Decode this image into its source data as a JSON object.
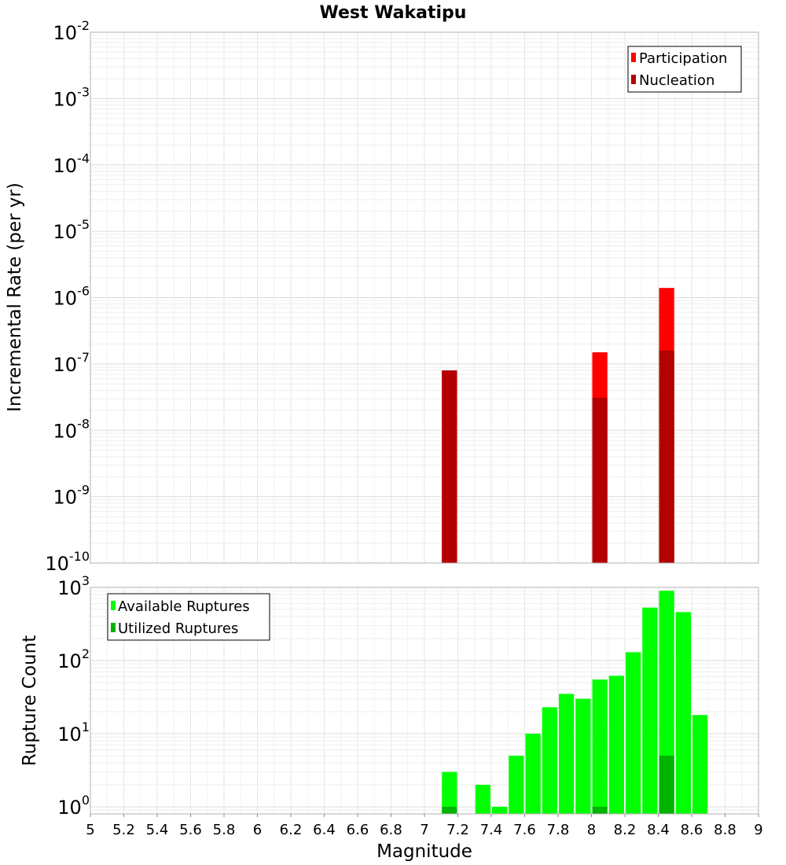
{
  "chart_data": [
    {
      "type": "bar",
      "title": "West Wakatipu",
      "xlabel": "",
      "ylabel": "Incremental Rate (per yr)",
      "yscale": "log",
      "ylim": [
        1e-10,
        0.01
      ],
      "xlim": [
        5,
        9
      ],
      "y_ticks": [
        {
          "base": "10",
          "exp": "-2",
          "value": 0.01
        },
        {
          "base": "10",
          "exp": "-3",
          "value": 0.001
        },
        {
          "base": "10",
          "exp": "-4",
          "value": 0.0001
        },
        {
          "base": "10",
          "exp": "-5",
          "value": 1e-05
        },
        {
          "base": "10",
          "exp": "-6",
          "value": 1e-06
        },
        {
          "base": "10",
          "exp": "-7",
          "value": 1e-07
        },
        {
          "base": "10",
          "exp": "-8",
          "value": 1e-08
        },
        {
          "base": "10",
          "exp": "-9",
          "value": 1e-09
        },
        {
          "base": "10",
          "exp": "-10",
          "value": 1e-10
        }
      ],
      "grid": true,
      "legend_position": "top-right",
      "series": [
        {
          "name": "Participation",
          "color": "#ff0000",
          "x": [
            7.15,
            8.05,
            8.45
          ],
          "values": [
            8e-08,
            1.5e-07,
            1.4e-06
          ]
        },
        {
          "name": "Nucleation",
          "color": "#b30000",
          "x": [
            7.15,
            8.05,
            8.45
          ],
          "values": [
            8e-08,
            3.1e-08,
            1.6e-07
          ]
        }
      ]
    },
    {
      "type": "bar",
      "title": "",
      "xlabel": "Magnitude",
      "ylabel": "Rupture Count",
      "yscale": "log",
      "ylim": [
        0.8,
        1000
      ],
      "xlim": [
        5,
        9
      ],
      "x_ticks": [
        "5",
        "5.2",
        "5.4",
        "5.6",
        "5.8",
        "6",
        "6.2",
        "6.4",
        "6.6",
        "6.8",
        "7",
        "7.2",
        "7.4",
        "7.6",
        "7.8",
        "8",
        "8.2",
        "8.4",
        "8.6",
        "8.8",
        "9"
      ],
      "y_ticks": [
        {
          "base": "10",
          "exp": "3",
          "value": 1000
        },
        {
          "base": "10",
          "exp": "2",
          "value": 100
        },
        {
          "base": "10",
          "exp": "1",
          "value": 10
        },
        {
          "base": "10",
          "exp": "0",
          "value": 1
        }
      ],
      "grid": true,
      "legend_position": "top-left",
      "series": [
        {
          "name": "Available Ruptures",
          "color": "#00ff00",
          "x": [
            7.15,
            7.35,
            7.45,
            7.55,
            7.65,
            7.75,
            7.85,
            7.95,
            8.05,
            8.15,
            8.25,
            8.35,
            8.45,
            8.55,
            8.65
          ],
          "values": [
            3,
            2,
            1,
            5,
            10,
            23,
            35,
            30,
            55,
            62,
            130,
            530,
            900,
            460,
            18
          ]
        },
        {
          "name": "Utilized Ruptures",
          "color": "#00b300",
          "x": [
            7.15,
            8.05,
            8.45
          ],
          "values": [
            1,
            1,
            5
          ]
        }
      ]
    }
  ]
}
